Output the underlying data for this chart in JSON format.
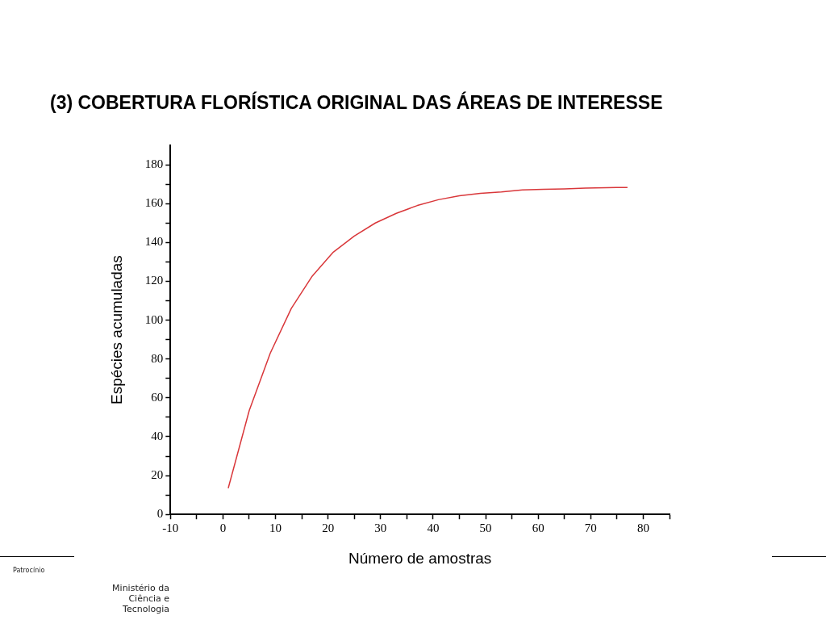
{
  "chart_data": {
    "type": "line",
    "title": "(3) COBERTURA FLORÍSTICA ORIGINAL DAS ÁREAS DE INTERESSE",
    "xlabel": "Número de amostras",
    "ylabel": "Espécies acumuladas",
    "series": [
      {
        "color": "#d9373a",
        "x": [
          1,
          5,
          9,
          13,
          17,
          21,
          25,
          29,
          33,
          37,
          41,
          45,
          49,
          53,
          57,
          61,
          65,
          69,
          73,
          77
        ],
        "values": [
          13.5,
          53.5,
          83,
          106,
          122.7,
          135,
          143.3,
          150,
          155,
          159,
          162,
          164,
          165.3,
          166,
          167,
          167.4,
          167.6,
          168,
          168.2,
          168.3
        ]
      }
    ],
    "xlim": [
      -10,
      85
    ],
    "ylim": [
      0,
      190
    ],
    "xticks": [
      -10,
      {
        "value": -5,
        "label": null
      },
      0,
      {
        "value": 5,
        "label": null
      },
      10,
      {
        "value": 15,
        "label": null
      },
      20,
      {
        "value": 25,
        "label": null
      },
      30,
      {
        "value": 35,
        "label": null
      },
      40,
      {
        "value": 45,
        "label": null
      },
      50,
      {
        "value": 55,
        "label": null
      },
      60,
      {
        "value": 65,
        "label": null
      },
      70,
      {
        "value": 75,
        "label": null
      },
      80,
      {
        "value": 85,
        "label": null
      }
    ],
    "yticks": [
      0,
      {
        "value": 10,
        "label": null
      },
      20,
      {
        "value": 30,
        "label": null
      },
      40,
      {
        "value": 50,
        "label": null
      },
      60,
      {
        "value": 70,
        "label": null
      },
      80,
      {
        "value": 90,
        "label": null
      },
      100,
      {
        "value": 110,
        "label": null
      },
      120,
      {
        "value": 130,
        "label": null
      },
      140,
      {
        "value": 150,
        "label": null
      },
      160,
      {
        "value": 170,
        "label": null
      },
      180
    ],
    "grid": false,
    "legend": false,
    "marker": "none",
    "line_style": "solid",
    "annotations": [
      "Patrocínio",
      "Ministério da Ciência e Tecnologia"
    ]
  }
}
